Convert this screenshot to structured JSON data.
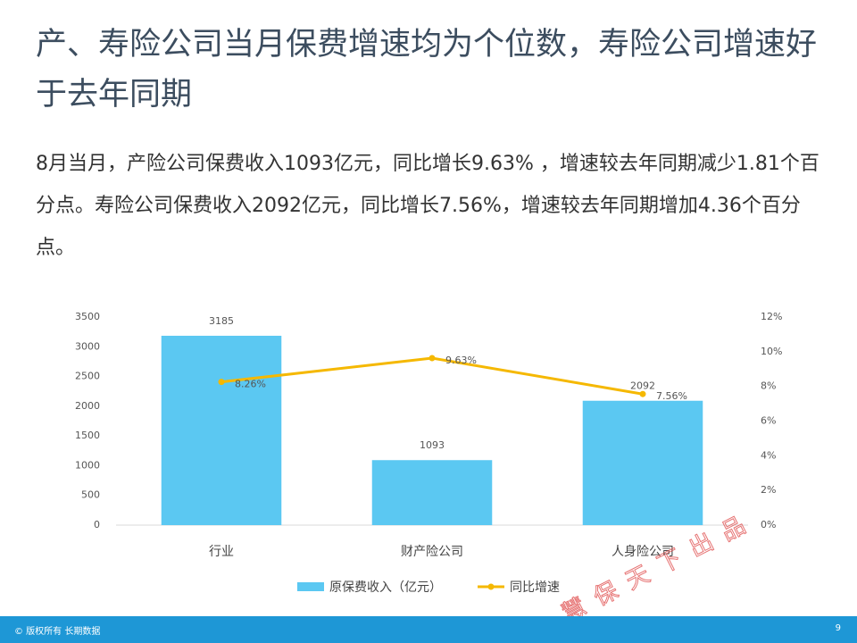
{
  "header": {
    "title": "产、寿险公司当月保费增速均为个位数，寿险公司增速好于去年同期"
  },
  "paragraph": "8月当月，产险公司保费收入1093亿元，同比增长9.63% ，增速较去年同期减少1.81个百分点。寿险公司保费收入2092亿元，同比增长7.56%，增速较去年同期增加4.36个百分点。",
  "chart_data": {
    "type": "bar",
    "categories": [
      "行业",
      "财产险公司",
      "人身险公司"
    ],
    "series": [
      {
        "name": "原保费收入（亿元）",
        "type": "bar",
        "color": "#5bc8f2",
        "values": [
          3185,
          1093,
          2092
        ]
      },
      {
        "name": "同比增速",
        "type": "line",
        "axis": "y2",
        "color": "#f5b800",
        "values": [
          8.26,
          9.63,
          7.56
        ],
        "value_labels": [
          "8.26%",
          "9.63%",
          "7.56%"
        ]
      }
    ],
    "ylim": [
      0,
      3500
    ],
    "yticks": [
      0,
      500,
      1000,
      1500,
      2000,
      2500,
      3000,
      3500
    ],
    "y2lim": [
      0,
      12
    ],
    "y2ticks": [
      {
        "value": 0,
        "label": "0%"
      },
      {
        "value": 2,
        "label": "2%"
      },
      {
        "value": 4,
        "label": "4%"
      },
      {
        "value": 6,
        "label": "6%"
      },
      {
        "value": 8,
        "label": "8%"
      },
      {
        "value": 10,
        "label": "10%"
      },
      {
        "value": 12,
        "label": "12%"
      }
    ]
  },
  "watermark": "慧保天下出品",
  "footer": {
    "copyright": "© 版权所有 长期数据",
    "page": "9"
  }
}
